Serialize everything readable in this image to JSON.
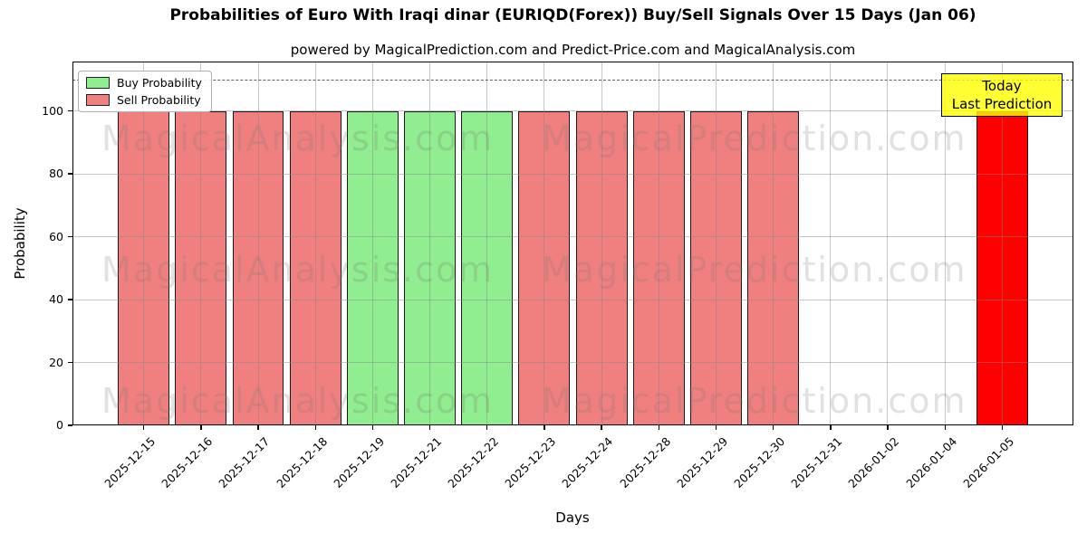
{
  "figure": {
    "title": "Probabilities of Euro With Iraqi dinar (EURIQD(Forex)) Buy/Sell Signals Over 15 Days (Jan 06)",
    "subtitle": "powered by MagicalPrediction.com and Predict-Price.com and MagicalAnalysis.com",
    "xlabel": "Days",
    "ylabel": "Probability"
  },
  "legend": {
    "items": [
      {
        "label": "Buy Probability",
        "color": "#90ee90"
      },
      {
        "label": "Sell Probability",
        "color": "#f08080"
      }
    ]
  },
  "annotation": {
    "line1": "Today",
    "line2": "Last Prediction",
    "bg": "#ffff00"
  },
  "watermarks": {
    "left": "MagicalAnalysis.com",
    "right": "MagicalPrediction.com"
  },
  "colors": {
    "buy": "#90ee90",
    "sell": "#f08080",
    "today": "#ff0000",
    "grid": "#b0b0b0",
    "dashed_line": "#5f5f5f",
    "annotation_bg": "#ffff00"
  },
  "chart_data": {
    "type": "bar",
    "title": "Probabilities of Euro With Iraqi dinar (EURIQD(Forex)) Buy/Sell Signals Over 15 Days (Jan 06)",
    "xlabel": "Days",
    "ylabel": "Probability",
    "categories": [
      "2025-12-15",
      "2025-12-16",
      "2025-12-17",
      "2025-12-18",
      "2025-12-19",
      "2025-12-21",
      "2025-12-22",
      "2025-12-23",
      "2025-12-24",
      "2025-12-28",
      "2025-12-29",
      "2025-12-30",
      "2025-12-31",
      "2026-01-02",
      "2026-01-04",
      "2026-01-05"
    ],
    "series": [
      {
        "name": "Buy Probability",
        "color": "#90ee90",
        "values": [
          0,
          0,
          0,
          0,
          100,
          100,
          100,
          0,
          0,
          0,
          0,
          0,
          0,
          0,
          0,
          0
        ]
      },
      {
        "name": "Sell Probability",
        "color": "#f08080",
        "values": [
          100,
          100,
          100,
          100,
          0,
          0,
          0,
          100,
          100,
          100,
          100,
          100,
          0,
          0,
          0,
          0
        ]
      },
      {
        "name": "Today Last Prediction",
        "color": "#ff0000",
        "values": [
          0,
          0,
          0,
          0,
          0,
          0,
          0,
          0,
          0,
          0,
          0,
          0,
          0,
          0,
          0,
          100
        ]
      }
    ],
    "yticks": [
      0,
      20,
      40,
      60,
      80,
      100
    ],
    "ylim": [
      0,
      115.7
    ],
    "dashed_line_y": 110,
    "grid": true,
    "legend_position": "upper left",
    "bar_width": 0.9
  }
}
